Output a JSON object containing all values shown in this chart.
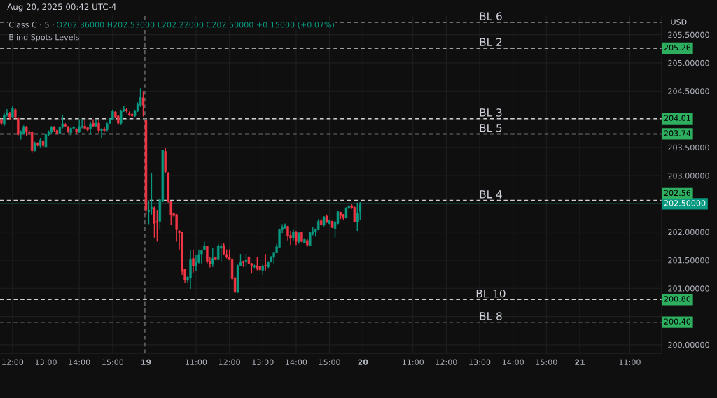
{
  "chart_data": {
    "type": "candlestick",
    "title": "Class C · 5 ·",
    "subtitle": "O202.36000 H202.53000 L202.22000 C202.50000 +0.15000 (+0.07%)",
    "ylabel": "USD",
    "annotations": [
      "Aug 20, 2025 00:42 UTC-4",
      "Blind Spots Levels",
      "205.26",
      "204.01",
      "203.74",
      "202.56",
      "200.80",
      "200.40"
    ],
    "categories": [
      null,
      null,
      null,
      null,
      "12:00",
      null,
      null,
      null,
      null,
      null,
      null,
      null,
      null,
      null,
      null,
      null,
      "13:00",
      null,
      null,
      null,
      null,
      null,
      null,
      null,
      null,
      null,
      null,
      null,
      "14:00",
      null,
      null,
      null,
      null,
      null,
      null,
      null,
      null,
      null,
      null,
      null,
      "15:00",
      null,
      null,
      null,
      null,
      null,
      null,
      null,
      null,
      null,
      null,
      null,
      "19",
      null,
      null,
      null,
      null,
      null,
      null,
      null,
      null,
      null,
      null,
      null,
      null,
      null,
      null,
      null,
      null,
      null,
      "11:00",
      null,
      null,
      null,
      null,
      null,
      null,
      null,
      null,
      null,
      null,
      null,
      "12:00",
      null,
      null,
      null,
      null,
      null,
      null,
      null,
      null,
      null,
      null,
      null,
      "13:00",
      null,
      null,
      null,
      null,
      null,
      null,
      null,
      null,
      null,
      null,
      null,
      "14:00",
      null,
      null,
      null,
      null,
      null,
      null,
      null,
      null,
      null,
      null,
      null,
      "15:00",
      null,
      null,
      null,
      null,
      null,
      null,
      null,
      null,
      null,
      null,
      null,
      "20",
      null,
      null,
      null,
      null,
      null,
      null,
      null,
      null,
      null,
      null,
      null,
      null,
      null,
      null,
      null,
      null,
      null,
      "11:00",
      null,
      null,
      null,
      null,
      null,
      null,
      null,
      null,
      null,
      null,
      null,
      "12:00",
      null,
      null,
      null,
      null,
      null,
      null,
      null,
      null,
      null,
      null,
      null,
      "13:00",
      null,
      null,
      null,
      null,
      null,
      null,
      null,
      null,
      null,
      null,
      null,
      "14:00",
      null,
      null,
      null,
      null,
      null,
      null,
      null,
      null,
      null,
      null,
      null,
      "15:00",
      null,
      null,
      null,
      null,
      null,
      null,
      null,
      null,
      null,
      null,
      null,
      "21",
      null,
      null,
      null,
      null,
      null,
      null,
      null,
      null,
      null,
      null,
      null,
      null,
      null,
      null,
      null,
      null,
      null,
      "11:00",
      null,
      null,
      null,
      null,
      null,
      null,
      null,
      null,
      null,
      null,
      null
    ],
    "ohlc": [
      [
        203.98,
        204.02,
        203.9,
        203.93
      ],
      [
        203.92,
        204.12,
        203.88,
        204.08
      ],
      [
        204.08,
        204.18,
        204.05,
        204.12
      ],
      [
        204.1,
        204.13,
        203.98,
        204.04
      ],
      [
        204.04,
        204.24,
        204.02,
        204.19
      ],
      [
        204.17,
        204.2,
        204.01,
        204.04
      ],
      [
        204.02,
        204.04,
        203.7,
        203.73
      ],
      [
        203.75,
        203.8,
        203.64,
        203.77
      ],
      [
        203.75,
        203.89,
        203.73,
        203.87
      ],
      [
        203.87,
        203.88,
        203.7,
        203.77
      ],
      [
        203.77,
        203.8,
        203.73,
        203.76
      ],
      [
        203.77,
        203.79,
        203.4,
        203.44
      ],
      [
        203.44,
        203.6,
        203.43,
        203.57
      ],
      [
        203.57,
        203.59,
        203.52,
        203.54
      ],
      [
        203.53,
        203.66,
        203.5,
        203.63
      ],
      [
        203.61,
        203.63,
        203.5,
        203.53
      ],
      [
        203.51,
        203.75,
        203.5,
        203.73
      ],
      [
        203.73,
        203.8,
        203.7,
        203.77
      ],
      [
        203.77,
        203.88,
        203.75,
        203.86
      ],
      [
        203.86,
        203.88,
        203.78,
        203.81
      ],
      [
        203.8,
        203.82,
        203.72,
        203.75
      ],
      [
        203.75,
        203.88,
        203.74,
        203.86
      ],
      [
        203.86,
        204.08,
        203.84,
        203.92
      ],
      [
        203.91,
        203.93,
        203.86,
        203.88
      ],
      [
        203.86,
        203.88,
        203.76,
        203.78
      ],
      [
        203.76,
        203.87,
        203.7,
        203.84
      ],
      [
        203.84,
        203.88,
        203.82,
        203.86
      ],
      [
        203.82,
        203.84,
        203.75,
        203.77
      ],
      [
        203.77,
        204.0,
        203.76,
        203.87
      ],
      [
        203.86,
        204.0,
        203.84,
        203.88
      ],
      [
        203.88,
        203.98,
        203.82,
        203.84
      ],
      [
        203.85,
        203.87,
        203.79,
        203.81
      ],
      [
        203.83,
        203.96,
        203.73,
        203.92
      ],
      [
        203.93,
        204.0,
        203.86,
        203.88
      ],
      [
        203.88,
        204.0,
        203.86,
        203.93
      ],
      [
        203.93,
        203.98,
        203.76,
        203.8
      ],
      [
        203.8,
        203.84,
        203.67,
        203.82
      ],
      [
        203.83,
        203.86,
        203.77,
        203.8
      ],
      [
        203.81,
        203.94,
        203.79,
        203.92
      ],
      [
        203.93,
        204.02,
        203.92,
        204.0
      ],
      [
        204.0,
        204.17,
        203.98,
        204.15
      ],
      [
        204.13,
        204.15,
        204.02,
        204.04
      ],
      [
        204.06,
        204.08,
        203.91,
        203.93
      ],
      [
        203.93,
        204.17,
        203.91,
        204.15
      ],
      [
        204.15,
        204.24,
        204.13,
        204.18
      ],
      [
        204.17,
        204.2,
        204.12,
        204.15
      ],
      [
        204.1,
        204.14,
        204.06,
        204.08
      ],
      [
        204.09,
        204.12,
        204.04,
        204.06
      ],
      [
        204.06,
        204.17,
        204.04,
        204.15
      ],
      [
        204.15,
        204.3,
        204.13,
        204.26
      ],
      [
        204.25,
        204.55,
        204.22,
        204.39
      ],
      [
        204.38,
        204.5,
        204.05,
        204.25
      ],
      [
        203.98,
        204.0,
        202.3,
        202.39
      ],
      [
        202.36,
        202.56,
        202.14,
        202.39
      ],
      [
        202.41,
        203.05,
        202.31,
        202.44
      ],
      [
        202.43,
        202.45,
        201.9,
        202.15
      ],
      [
        202.19,
        202.39,
        201.83,
        202.17
      ],
      [
        202.19,
        202.6,
        202.04,
        202.57
      ],
      [
        202.54,
        203.46,
        202.53,
        203.45
      ],
      [
        203.43,
        203.49,
        203.05,
        203.07
      ],
      [
        203.05,
        203.06,
        202.52,
        202.54
      ],
      [
        202.54,
        202.55,
        202.12,
        202.31
      ],
      [
        202.33,
        202.34,
        202.27,
        202.29
      ],
      [
        202.31,
        202.32,
        201.83,
        202.04
      ],
      [
        202.02,
        202.03,
        201.69,
        201.99
      ],
      [
        202.0,
        202.01,
        201.24,
        201.3
      ],
      [
        201.34,
        201.35,
        201.09,
        201.15
      ],
      [
        201.14,
        201.22,
        201.1,
        201.2
      ],
      [
        201.18,
        201.67,
        200.99,
        201.52
      ],
      [
        201.53,
        201.69,
        201.28,
        201.4
      ],
      [
        201.4,
        201.59,
        201.3,
        201.47
      ],
      [
        201.46,
        201.69,
        201.44,
        201.6
      ],
      [
        201.61,
        201.69,
        201.44,
        201.67
      ],
      [
        201.69,
        201.83,
        201.68,
        201.76
      ],
      [
        201.75,
        201.76,
        201.44,
        201.48
      ],
      [
        201.48,
        201.56,
        201.37,
        201.43
      ],
      [
        201.43,
        201.72,
        201.38,
        201.53
      ],
      [
        201.55,
        201.56,
        201.5,
        201.52
      ],
      [
        201.52,
        201.79,
        201.5,
        201.76
      ],
      [
        201.71,
        201.79,
        201.48,
        201.75
      ],
      [
        201.76,
        201.81,
        201.59,
        201.61
      ],
      [
        201.6,
        201.69,
        201.53,
        201.56
      ],
      [
        201.55,
        201.69,
        201.51,
        201.52
      ],
      [
        201.52,
        201.53,
        201.15,
        201.17
      ],
      [
        201.19,
        201.2,
        200.92,
        200.93
      ],
      [
        200.93,
        201.42,
        200.92,
        201.4
      ],
      [
        201.4,
        201.61,
        201.39,
        201.46
      ],
      [
        201.48,
        201.49,
        201.38,
        201.46
      ],
      [
        201.48,
        201.61,
        201.38,
        201.5
      ],
      [
        201.56,
        201.56,
        201.43,
        201.44
      ],
      [
        201.44,
        201.45,
        201.26,
        201.4
      ],
      [
        201.38,
        201.42,
        201.36,
        201.4
      ],
      [
        201.4,
        201.55,
        201.32,
        201.36
      ],
      [
        201.39,
        201.4,
        201.3,
        201.33
      ],
      [
        201.32,
        201.42,
        201.24,
        201.4
      ],
      [
        201.41,
        201.61,
        201.32,
        201.4
      ],
      [
        201.38,
        201.48,
        201.36,
        201.46
      ],
      [
        201.47,
        201.57,
        201.46,
        201.56
      ],
      [
        201.55,
        201.65,
        201.44,
        201.64
      ],
      [
        201.64,
        201.79,
        201.63,
        201.74
      ],
      [
        201.73,
        202.06,
        201.72,
        202.04
      ],
      [
        202.04,
        202.14,
        201.98,
        202.08
      ],
      [
        202.07,
        202.15,
        202.06,
        202.13
      ],
      [
        202.1,
        202.11,
        201.85,
        201.93
      ],
      [
        201.94,
        202.02,
        201.77,
        201.9
      ],
      [
        201.9,
        202.04,
        201.85,
        202.0
      ],
      [
        202.0,
        202.02,
        201.77,
        201.83
      ],
      [
        201.83,
        202.0,
        201.79,
        201.98
      ],
      [
        202.0,
        202.01,
        201.82,
        201.83
      ],
      [
        201.81,
        201.89,
        201.8,
        201.87
      ],
      [
        201.85,
        201.89,
        201.74,
        201.77
      ],
      [
        201.76,
        202.0,
        201.75,
        201.99
      ],
      [
        201.98,
        202.09,
        201.94,
        202.01
      ],
      [
        202.01,
        202.06,
        201.92,
        202.05
      ],
      [
        202.04,
        202.23,
        202.03,
        202.19
      ],
      [
        202.2,
        202.23,
        202.12,
        202.13
      ],
      [
        202.13,
        202.28,
        202.1,
        202.27
      ],
      [
        202.28,
        202.31,
        202.16,
        202.18
      ],
      [
        202.15,
        202.22,
        202.14,
        202.21
      ],
      [
        202.19,
        202.2,
        202.07,
        202.08
      ],
      [
        202.06,
        202.2,
        201.9,
        202.18
      ],
      [
        202.15,
        202.37,
        202.14,
        202.36
      ],
      [
        202.35,
        202.36,
        202.23,
        202.29
      ],
      [
        202.31,
        202.32,
        202.21,
        202.25
      ],
      [
        202.25,
        202.44,
        202.24,
        202.42
      ],
      [
        202.42,
        202.48,
        202.41,
        202.46
      ],
      [
        202.47,
        202.49,
        202.41,
        202.43
      ],
      [
        202.44,
        202.45,
        202.17,
        202.18
      ],
      [
        202.18,
        202.52,
        202.02,
        202.34
      ],
      [
        202.36,
        202.53,
        202.22,
        202.5
      ],
      null,
      null,
      null,
      null,
      null,
      null,
      null,
      null,
      null,
      null,
      null,
      null,
      null,
      null,
      null,
      null,
      null,
      null,
      null,
      null,
      null,
      null,
      null,
      null,
      null,
      null,
      null,
      null,
      null,
      null,
      null,
      null,
      null,
      null,
      null,
      null,
      null,
      null,
      null,
      null,
      null,
      null,
      null,
      null,
      null,
      null,
      null,
      null,
      null,
      null,
      null,
      null,
      null,
      null,
      null,
      null,
      null,
      null,
      null,
      null,
      null,
      null,
      null,
      null,
      null,
      null,
      null,
      null,
      null,
      null,
      null,
      null,
      null,
      null,
      null,
      null,
      null,
      null,
      null,
      null,
      null,
      null,
      null,
      null,
      null,
      null,
      null,
      null,
      null,
      null,
      null,
      null,
      null,
      null,
      null,
      null,
      null,
      null,
      null,
      null,
      null,
      null,
      null,
      null,
      null,
      null,
      null,
      null
    ],
    "ylim": [
      199.85,
      205.84
    ],
    "yticks": [
      {
        "value": 200,
        "label": "200.00000"
      },
      {
        "value": 200.5,
        "label": null
      },
      {
        "value": 201,
        "label": "201.00000"
      },
      {
        "value": 201.5,
        "label": "201.50000"
      },
      {
        "value": 202,
        "label": "202.00000"
      },
      {
        "value": 202.5,
        "label": null
      },
      {
        "value": 203,
        "label": "203.00000"
      },
      {
        "value": 203.5,
        "label": "203.50000"
      },
      {
        "value": 204,
        "label": null
      },
      {
        "value": 204.5,
        "label": "204.50000"
      },
      {
        "value": 205,
        "label": "205.00000"
      },
      {
        "value": 205.5,
        "label": "205.50000"
      }
    ],
    "ref_lines": [
      {
        "axis": "y",
        "value": 205.72,
        "label": "BL 6",
        "color": "#d0d0d0",
        "line_style": "dashed"
      },
      {
        "axis": "y",
        "value": 205.26,
        "label": "BL 2",
        "color": "#d0d0d0",
        "line_style": "dashed"
      },
      {
        "axis": "y",
        "value": 204.01,
        "label": "BL 3",
        "color": "#d0d0d0",
        "line_style": "dashed"
      },
      {
        "axis": "y",
        "value": 203.74,
        "label": "BL 5",
        "color": "#d0d0d0",
        "line_style": "dashed"
      },
      {
        "axis": "y",
        "value": 202.56,
        "label": "BL 4",
        "color": "#d0d0d0",
        "line_style": "dashed"
      },
      {
        "axis": "y",
        "value": 200.8,
        "label": "BL 10",
        "color": "#d0d0d0",
        "line_style": "dashed"
      },
      {
        "axis": "y",
        "value": 200.4,
        "label": "BL 8",
        "color": "#d0d0d0",
        "line_style": "dashed"
      },
      {
        "axis": "y",
        "value": 202.5,
        "label": "202.50000",
        "color": "#089981",
        "line_style": "solid"
      },
      {
        "axis": "x",
        "value": "19",
        "label": null,
        "color": "#707070",
        "line_style": "dashed"
      }
    ],
    "grid": true
  }
}
